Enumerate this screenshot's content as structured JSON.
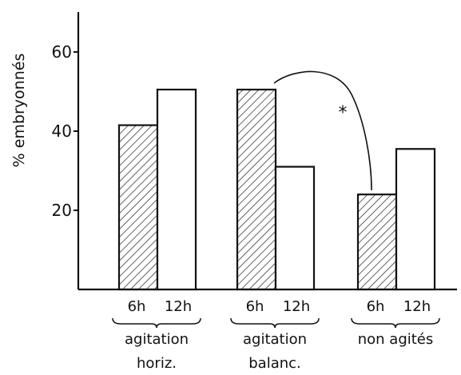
{
  "chart_data": {
    "type": "bar",
    "ylabel": "% embryonnés",
    "yticks": [
      20,
      40,
      60
    ],
    "ylim": [
      0,
      70
    ],
    "grid": false,
    "time_labels": [
      "6h",
      "12h"
    ],
    "groups": [
      {
        "label_lines": [
          "agitation",
          "horiz."
        ],
        "values": [
          41.5,
          50.5
        ]
      },
      {
        "label_lines": [
          "agitation",
          "balanc."
        ],
        "values": [
          50.5,
          31
        ]
      },
      {
        "label_lines": [
          "non agités"
        ],
        "values": [
          24,
          35.5
        ]
      }
    ],
    "series": [
      {
        "name": "6h",
        "pattern": "hatched"
      },
      {
        "name": "12h",
        "pattern": "open"
      }
    ],
    "annotation": {
      "text": "*",
      "between": [
        "agitation balanc. 6h",
        "non agités 6h"
      ]
    }
  }
}
